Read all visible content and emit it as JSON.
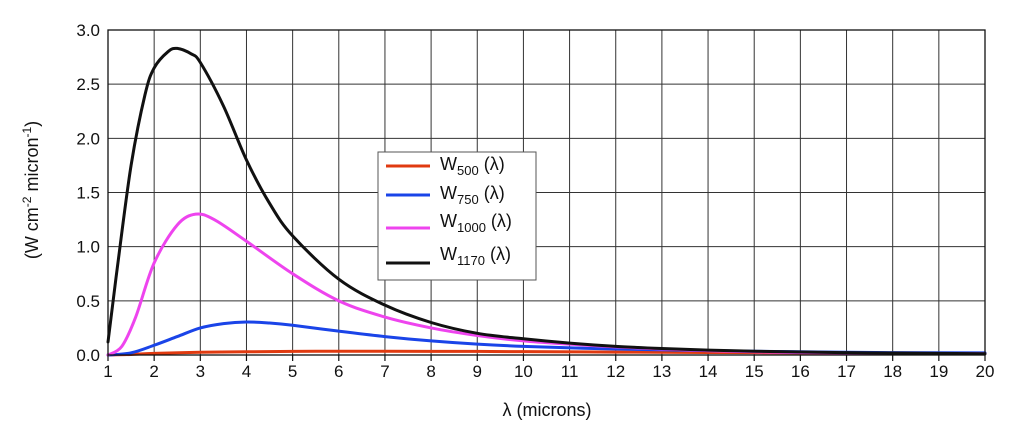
{
  "chart_data": {
    "type": "line",
    "title": "",
    "xlabel": "λ (microns)",
    "ylabel": {
      "base": "(W cm",
      "sup1": "-2",
      "mid": " micron",
      "sup2": "-1",
      "end": ")"
    },
    "xlim": [
      1,
      20
    ],
    "ylim": [
      0,
      3.0
    ],
    "xticks": [
      1,
      2,
      3,
      4,
      5,
      6,
      7,
      8,
      9,
      10,
      11,
      12,
      13,
      14,
      15,
      16,
      17,
      18,
      19,
      20
    ],
    "yticks": [
      "0.0",
      "0.5",
      "1.0",
      "1.5",
      "2.0",
      "2.5",
      "3.0"
    ],
    "grid": true,
    "legend_position": "center",
    "series": [
      {
        "name": "W500 (λ)",
        "legend": {
          "base": "W",
          "sub": "500",
          "suffix": " (λ)"
        },
        "color": "#e03a10",
        "x": [
          1,
          1.5,
          2,
          3,
          4,
          5,
          6,
          7,
          8,
          9,
          10,
          12,
          14,
          16,
          18,
          20
        ],
        "y": [
          0.0,
          0.005,
          0.015,
          0.025,
          0.03,
          0.033,
          0.035,
          0.035,
          0.034,
          0.033,
          0.031,
          0.027,
          0.023,
          0.02,
          0.017,
          0.015
        ]
      },
      {
        "name": "W750 (λ)",
        "legend": {
          "base": "W",
          "sub": "750",
          "suffix": " (λ)"
        },
        "color": "#1a44e8",
        "x": [
          1,
          1.5,
          2,
          2.5,
          3,
          3.5,
          4,
          4.5,
          5,
          6,
          7,
          8,
          9,
          10,
          12,
          14,
          16,
          18,
          20
        ],
        "y": [
          0.0,
          0.02,
          0.09,
          0.17,
          0.25,
          0.29,
          0.305,
          0.295,
          0.275,
          0.22,
          0.17,
          0.13,
          0.1,
          0.08,
          0.055,
          0.04,
          0.03,
          0.022,
          0.02
        ]
      },
      {
        "name": "W1000 (λ)",
        "legend": {
          "base": "W",
          "sub": "1000",
          "suffix": " (λ)"
        },
        "color": "#ee44ee",
        "x": [
          1,
          1.3,
          1.6,
          2,
          2.5,
          2.9,
          3.3,
          4,
          5,
          6,
          7,
          8,
          9,
          10,
          11,
          12,
          13,
          14,
          15,
          16,
          18,
          20
        ],
        "y": [
          0.0,
          0.08,
          0.35,
          0.85,
          1.2,
          1.3,
          1.25,
          1.05,
          0.75,
          0.5,
          0.35,
          0.25,
          0.18,
          0.13,
          0.1,
          0.075,
          0.055,
          0.04,
          0.03,
          0.022,
          0.015,
          0.012
        ]
      },
      {
        "name": "W1170 (λ)",
        "legend": {
          "base": "W",
          "sub": "1170",
          "suffix": " (λ)"
        },
        "color": "#111111",
        "x": [
          1,
          1.2,
          1.5,
          1.8,
          2,
          2.3,
          2.5,
          2.8,
          3,
          3.5,
          4,
          4.5,
          5,
          6,
          7,
          8,
          9,
          10,
          11,
          12,
          13,
          14,
          15,
          16,
          17,
          18,
          19,
          20
        ],
        "y": [
          0.12,
          0.8,
          1.75,
          2.4,
          2.65,
          2.8,
          2.83,
          2.78,
          2.7,
          2.3,
          1.8,
          1.4,
          1.1,
          0.7,
          0.46,
          0.3,
          0.2,
          0.15,
          0.11,
          0.08,
          0.06,
          0.045,
          0.035,
          0.028,
          0.022,
          0.018,
          0.015,
          0.012
        ]
      }
    ]
  }
}
